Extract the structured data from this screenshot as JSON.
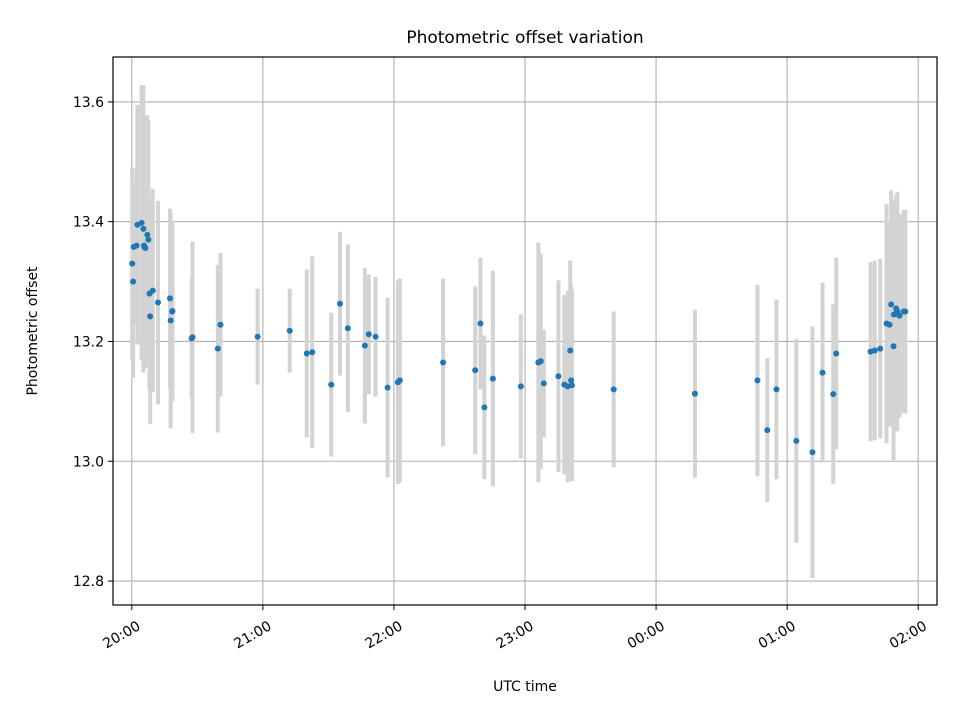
{
  "chart_data": {
    "type": "scatter",
    "title": "Photometric offset variation",
    "xlabel": "UTC time",
    "ylabel": "Photometric offset",
    "x_tick_labels": [
      "20:00",
      "21:00",
      "22:00",
      "23:00",
      "00:00",
      "01:00",
      "02:00"
    ],
    "y_tick_labels": [
      "12.8",
      "13.0",
      "13.2",
      "13.4",
      "13.6"
    ],
    "x_tick_minutes_after_2000": [
      0,
      60,
      120,
      180,
      240,
      300,
      360
    ],
    "y_tick_values": [
      12.8,
      13.0,
      13.2,
      13.4,
      13.6
    ],
    "xlim_minutes_after_2000": [
      -8.6,
      368.6
    ],
    "ylim": [
      12.76,
      13.675
    ],
    "grid": true,
    "colors": {
      "points": "#1f77b4",
      "errorbars": "#d3d3d3",
      "grid": "#b0b0b0"
    },
    "series": [
      {
        "x_minutes_after_2000": [
          0.2,
          0.6,
          0.9,
          2.2,
          2.6,
          4.5,
          5.3,
          5.6,
          5.8,
          6.2,
          7.1,
          7.6,
          8.1,
          8.4,
          9.6,
          12.0,
          17.8,
          17.5,
          18.5,
          18.6,
          27.4,
          27.8,
          39.4,
          40.6,
          57.6,
          72.3,
          80.1,
          82.6,
          91.3,
          95.3,
          98.9,
          106.7,
          108.5,
          111.6,
          117.1,
          121.8,
          122.7,
          142.5,
          157.2,
          159.6,
          161.4,
          165.3,
          178.1,
          186.1,
          187.2,
          188.6,
          195.3,
          198.0,
          199.6,
          200.7,
          201.1,
          201.5,
          220.6,
          257.8,
          286.4,
          290.9,
          295.1,
          304.2,
          311.6,
          316.2,
          321.1,
          322.5,
          338.2,
          340.1,
          342.6,
          345.5,
          346.9,
          347.6,
          348.7,
          348.9,
          349.9,
          350.4,
          351.4,
          353.3,
          354.1
        ],
        "y": [
          13.33,
          13.3,
          13.358,
          13.36,
          13.395,
          13.398,
          13.388,
          13.36,
          13.358,
          13.356,
          13.378,
          13.37,
          13.28,
          13.242,
          13.285,
          13.265,
          13.235,
          13.272,
          13.25,
          13.251,
          13.205,
          13.207,
          13.188,
          13.228,
          13.208,
          13.218,
          13.18,
          13.182,
          13.128,
          13.263,
          13.222,
          13.193,
          13.212,
          13.208,
          13.123,
          13.132,
          13.135,
          13.165,
          13.152,
          13.23,
          13.09,
          13.138,
          13.125,
          13.165,
          13.167,
          13.13,
          13.142,
          13.128,
          13.125,
          13.185,
          13.135,
          13.127,
          13.12,
          13.113,
          13.135,
          13.052,
          13.12,
          13.034,
          13.015,
          13.148,
          13.112,
          13.18,
          13.183,
          13.185,
          13.188,
          13.23,
          13.228,
          13.262,
          13.192,
          13.245,
          13.255,
          13.25,
          13.243,
          13.25,
          13.25
        ],
        "yerr": [
          0.16,
          0.16,
          0.11,
          0.13,
          0.2,
          0.23,
          0.24,
          0.2,
          0.2,
          0.2,
          0.2,
          0.2,
          0.16,
          0.18,
          0.17,
          0.17,
          0.18,
          0.15,
          0.15,
          0.15,
          0.1,
          0.16,
          0.14,
          0.12,
          0.08,
          0.07,
          0.14,
          0.16,
          0.12,
          0.12,
          0.14,
          0.13,
          0.1,
          0.1,
          0.15,
          0.17,
          0.17,
          0.14,
          0.14,
          0.11,
          0.12,
          0.18,
          0.12,
          0.2,
          0.18,
          0.09,
          0.16,
          0.15,
          0.16,
          0.15,
          0.16,
          0.16,
          0.13,
          0.14,
          0.16,
          0.12,
          0.15,
          0.17,
          0.21,
          0.15,
          0.15,
          0.16,
          0.15,
          0.15,
          0.15,
          0.2,
          0.17,
          0.19,
          0.19,
          0.19,
          0.19,
          0.2,
          0.17,
          0.17,
          0.17
        ]
      }
    ]
  }
}
